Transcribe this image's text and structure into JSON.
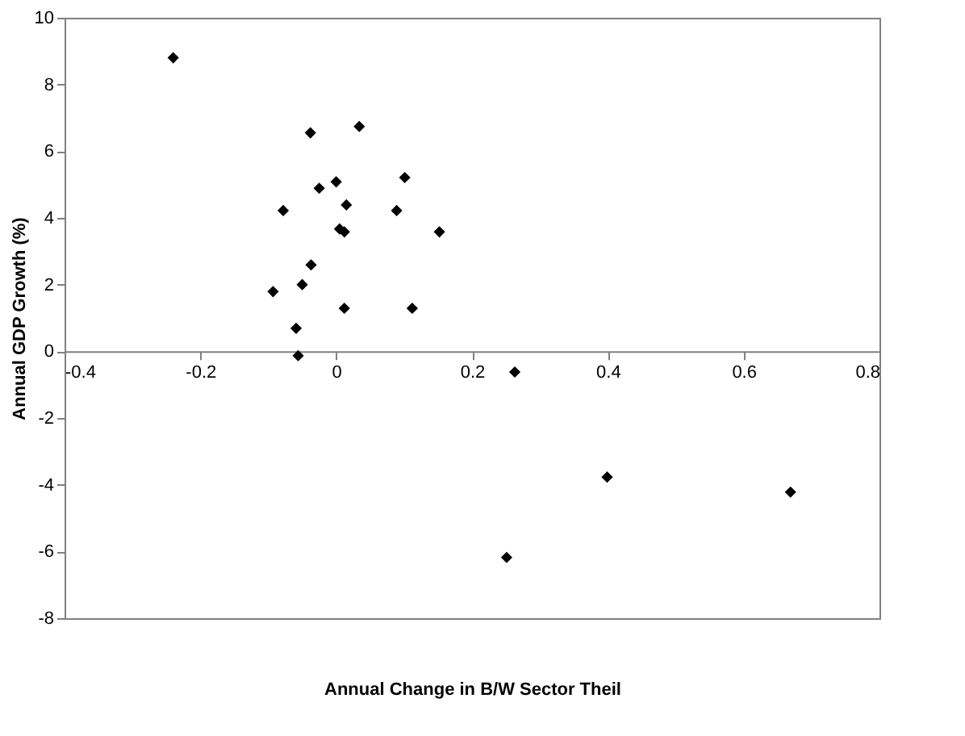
{
  "chart_data": {
    "type": "scatter",
    "xlabel": "Annual Change in B/W Sector Theil",
    "ylabel": "Annual GDP Growth (%)",
    "x": [
      -0.24,
      -0.038,
      0.034,
      0.0,
      -0.025,
      0.101,
      -0.078,
      0.015,
      0.089,
      0.005,
      0.012,
      0.152,
      -0.037,
      -0.093,
      -0.05,
      0.012,
      0.112,
      -0.059,
      -0.056,
      0.263,
      0.399,
      0.669,
      0.251
    ],
    "values": [
      8.8,
      6.55,
      6.74,
      5.08,
      4.89,
      5.21,
      4.22,
      4.39,
      4.22,
      3.67,
      3.58,
      3.58,
      2.59,
      1.79,
      2.0,
      1.29,
      1.29,
      0.69,
      -0.13,
      -0.62,
      -3.77,
      -4.22,
      -6.18
    ],
    "color": "#000000",
    "marker": "diamond",
    "grid": false,
    "xlim": [
      -0.4,
      0.8
    ],
    "xticks": [
      -0.4,
      -0.2,
      0,
      0.2,
      0.4,
      0.6,
      0.8
    ],
    "ylim": [
      -8,
      10
    ],
    "yticks": [
      -8,
      -6,
      -4,
      -2,
      0,
      2,
      4,
      6,
      8,
      10
    ]
  }
}
